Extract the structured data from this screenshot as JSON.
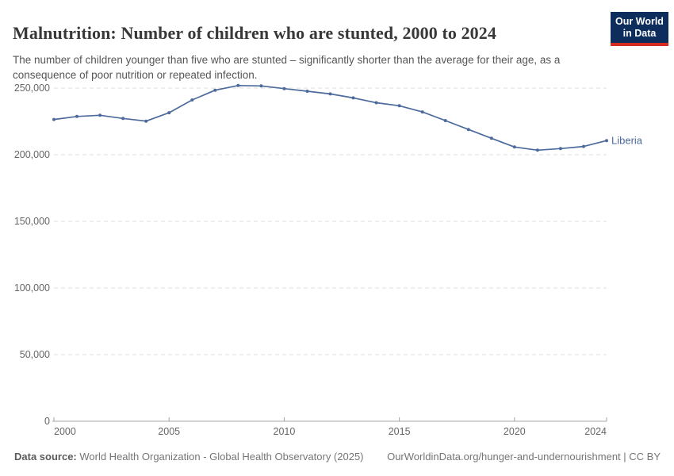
{
  "header": {
    "title": "Malnutrition: Number of children who are stunted, 2000 to 2024",
    "subtitle": "The number of children younger than five who are stunted – significantly shorter than the average for their age, as a consequence of poor nutrition or repeated infection.",
    "logo": {
      "line1": "Our World",
      "line2": "in Data",
      "navy_color": "#0d2e5c",
      "red_color": "#d42b21"
    }
  },
  "chart_data": {
    "type": "line",
    "title": "Malnutrition: Number of children who are stunted, 2000 to 2024",
    "x": [
      2000,
      2001,
      2002,
      2003,
      2004,
      2005,
      2006,
      2007,
      2008,
      2009,
      2010,
      2011,
      2012,
      2013,
      2014,
      2015,
      2016,
      2017,
      2018,
      2019,
      2020,
      2021,
      2022,
      2023,
      2024
    ],
    "series": [
      {
        "name": "Liberia",
        "color": "#4C6A9C",
        "values": [
          226400,
          228700,
          229600,
          227200,
          225200,
          231500,
          241100,
          248400,
          251900,
          251600,
          249600,
          247600,
          245600,
          242600,
          239000,
          236700,
          232100,
          225600,
          218900,
          212300,
          205800,
          203400,
          204600,
          206200,
          210600
        ]
      }
    ],
    "xlabel": "",
    "ylabel": "",
    "ylim": [
      0,
      250000
    ],
    "yticks": [
      0,
      50000,
      100000,
      150000,
      200000,
      250000
    ],
    "ytick_labels": [
      "0",
      "50,000",
      "100,000",
      "150,000",
      "200,000",
      "250,000"
    ],
    "xticks": [
      2000,
      2005,
      2010,
      2015,
      2020,
      2024
    ],
    "xtick_labels": [
      "2000",
      "2005",
      "2010",
      "2015",
      "2020",
      "2024"
    ],
    "grid": "horizontal-dashed",
    "gridline_color": "#dddddd",
    "axis_color": "#a5a5a5",
    "tick_label_color": "#666666",
    "legend_position": "line-end-label"
  },
  "footer": {
    "datasource_label": "Data source:",
    "datasource_value": " World Health Organization - Global Health Observatory (2025)",
    "link": "OurWorldinData.org/hunger-and-undernourishment | CC BY"
  }
}
